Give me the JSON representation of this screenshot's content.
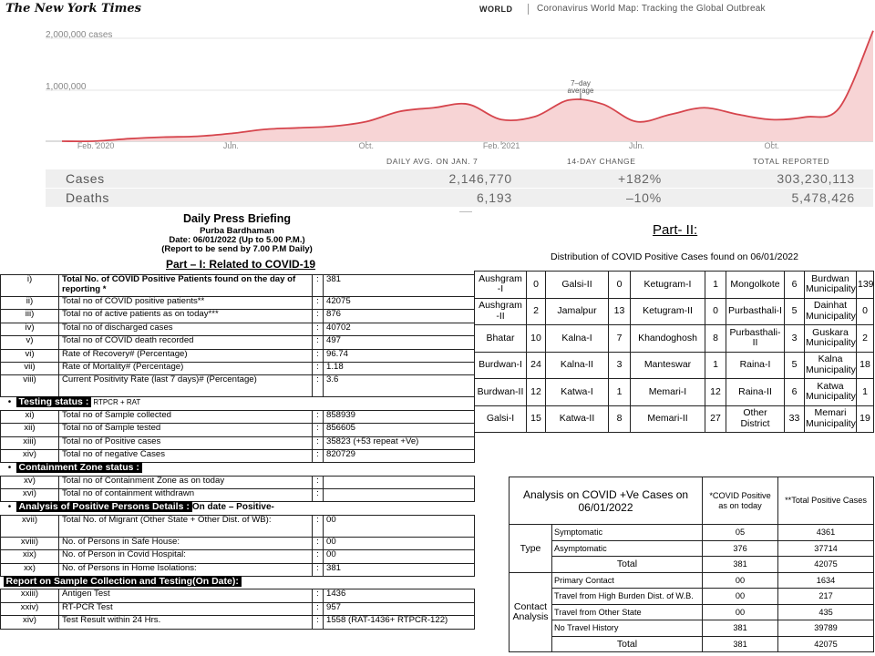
{
  "nyt": {
    "logo": "The New York Times",
    "section": "WORLD",
    "headline": "Coronavirus World Map: Tracking the Global Outbreak"
  },
  "chart_data": {
    "type": "area",
    "title": "",
    "y_ticks": [
      "2,000,000 cases",
      "1,000,000"
    ],
    "x_ticks": [
      "Feb. 2020",
      "Jun.",
      "Oct.",
      "Feb. 2021",
      "Jun.",
      "Oct."
    ],
    "annotation": "7–day average",
    "ylim": [
      0,
      2200000
    ],
    "color": "#d6454d",
    "fill": "#f7d4d5",
    "series": [
      {
        "x": [
          "2020-01",
          "2020-02",
          "2020-03",
          "2020-04",
          "2020-05",
          "2020-06",
          "2020-07",
          "2020-08",
          "2020-09",
          "2020-10",
          "2020-11",
          "2020-12",
          "2021-01",
          "2021-02",
          "2021-03",
          "2021-04",
          "2021-05",
          "2021-06",
          "2021-07",
          "2021-08",
          "2021-09",
          "2021-10",
          "2021-11",
          "2021-12",
          "2022-01"
        ],
        "values": [
          0,
          2000,
          50000,
          80000,
          95000,
          150000,
          230000,
          260000,
          290000,
          380000,
          580000,
          650000,
          720000,
          420000,
          480000,
          800000,
          720000,
          380000,
          520000,
          650000,
          520000,
          420000,
          470000,
          650000,
          2146770
        ]
      }
    ]
  },
  "nyt_stats": {
    "headers": [
      "DAILY AVG. ON JAN. 7",
      "14-DAY CHANGE",
      "TOTAL REPORTED"
    ],
    "rows": [
      {
        "label": "Cases",
        "avg": "2,146,770",
        "change": "+182%",
        "total": "303,230,113"
      },
      {
        "label": "Deaths",
        "avg": "6,193",
        "change": "–10%",
        "total": "5,478,426"
      }
    ]
  },
  "briefing": {
    "title": "Daily Press Briefing",
    "district": "Purba Bardhaman",
    "date": "Date: 06/01/2022 (Up to 5.00 P.M.)",
    "note": "(Report to be send by 7.00 P.M Daily)",
    "part1": "Part – I: Related to COVID-19"
  },
  "part1_rows": [
    {
      "n": "i)",
      "label": "Total No. of COVID Positive Patients found on the day of reporting *",
      "value": "381"
    },
    {
      "n": "ii)",
      "label": "Total no of COVID positive patients**",
      "value": "42075"
    },
    {
      "n": "iii)",
      "label": "Total no of active patients as on today***",
      "value": "876"
    },
    {
      "n": "iv)",
      "label": "Total no of discharged cases",
      "value": "40702"
    },
    {
      "n": "v)",
      "label": "Total no of COVID death recorded",
      "value": "497"
    },
    {
      "n": "vi)",
      "label": "Rate of Recovery# (Percentage)",
      "value": "96.74"
    },
    {
      "n": "vii)",
      "label": "Rate of Mortality# (Percentage)",
      "value": "1.18"
    },
    {
      "n": "viii)",
      "label": "Current Positivity Rate (last 7 days)# (Percentage)",
      "value": "3.6"
    }
  ],
  "testing": {
    "bullet": "•",
    "title": "Testing status :",
    "suffix": "RTPCR + RAT",
    "rows": [
      {
        "n": "xi)",
        "label": "Total no of Sample collected",
        "value": "858939"
      },
      {
        "n": "xii)",
        "label": "Total no of Sample tested",
        "value": "856605"
      },
      {
        "n": "xiii)",
        "label": "Total no of Positive cases",
        "value": "35823  (+53 repeat +Ve)"
      },
      {
        "n": "xiv)",
        "label": "Total no of negative Cases",
        "value": "820729"
      }
    ]
  },
  "containment": {
    "bullet": "•",
    "title": "Containment Zone status :",
    "rows": [
      {
        "n": "xv)",
        "label": "Total no of Containment Zone as on today",
        "value": ""
      },
      {
        "n": "xvi)",
        "label": "Total no of containment withdrawn",
        "value": ""
      }
    ]
  },
  "analysis_pos": {
    "bullet": "•",
    "title": "Analysis of Positive Persons Details :",
    "suffix": "On date – Positive-",
    "rows": [
      {
        "n": "xvii)",
        "label": "Total No. of Migrant (Other State + Other Dist. of WB):",
        "value": "00"
      },
      {
        "n": "xviii)",
        "label": "No. of Persons in Safe House:",
        "value": "00"
      },
      {
        "n": "xix)",
        "label": "No. of Person in Covid Hospital:",
        "value": "00"
      },
      {
        "n": "xx)",
        "label": "No. of Persons in Home Isolations:",
        "value": "381"
      }
    ]
  },
  "sample": {
    "title": "Report on Sample Collection and Testing(On Date):",
    "rows": [
      {
        "n": "xxiii)",
        "label": "Antigen Test",
        "value": "1436"
      },
      {
        "n": "xxiv)",
        "label": "RT-PCR Test",
        "value": "957"
      },
      {
        "n": "xiv)",
        "label": "Test Result within 24 Hrs.",
        "value": "1558  (RAT-1436+ RTPCR-122)"
      }
    ]
  },
  "colon": ":",
  "part2": {
    "title": "Part- II:",
    "subtitle": "Distribution of COVID Positive Cases found on 06/01/2022",
    "rows": [
      [
        [
          "Aushgram -I",
          "0"
        ],
        [
          "Galsi-II",
          "0"
        ],
        [
          "Ketugram-I",
          "1"
        ],
        [
          "Mongolkote",
          "6"
        ],
        [
          "Burdwan Municipality",
          "139"
        ]
      ],
      [
        [
          "Aushgram -II",
          "2"
        ],
        [
          "Jamalpur",
          "13"
        ],
        [
          "Ketugram-II",
          "0"
        ],
        [
          "Purbasthali-I",
          "5"
        ],
        [
          "Dainhat Municipality",
          "0"
        ]
      ],
      [
        [
          "Bhatar",
          "10"
        ],
        [
          "Kalna-I",
          "7"
        ],
        [
          "Khandoghosh",
          "8"
        ],
        [
          "Purbasthali-II",
          "3"
        ],
        [
          "Guskara Municipality",
          "2"
        ]
      ],
      [
        [
          "Burdwan-I",
          "24"
        ],
        [
          "Kalna-II",
          "3"
        ],
        [
          "Manteswar",
          "1"
        ],
        [
          "Raina-I",
          "5"
        ],
        [
          "Kalna Municipality",
          "18"
        ]
      ],
      [
        [
          "Burdwan-II",
          "12"
        ],
        [
          "Katwa-I",
          "1"
        ],
        [
          "Memari-I",
          "12"
        ],
        [
          "Raina-II",
          "6"
        ],
        [
          "Katwa Municipality",
          "1"
        ]
      ],
      [
        [
          "Galsi-I",
          "15"
        ],
        [
          "Katwa-II",
          "8"
        ],
        [
          "Memari-II",
          "27"
        ],
        [
          "Other District",
          "33"
        ],
        [
          "Memari Municipality",
          "19"
        ]
      ]
    ]
  },
  "analysis_table": {
    "title": "Analysis on COVID +Ve Cases on 06/01/2022",
    "col1": "*COVID Positive as on today",
    "col2": "**Total Positive Cases",
    "type_label": "Type",
    "type_rows": [
      {
        "label": "Symptomatic",
        "today": "05",
        "total": "4361"
      },
      {
        "label": "Asymptomatic",
        "today": "376",
        "total": "37714"
      }
    ],
    "type_total": {
      "label": "Total",
      "today": "381",
      "total": "42075"
    },
    "contact_label": "Contact Analysis",
    "contact_rows": [
      {
        "label": "Primary Contact",
        "today": "00",
        "total": "1634"
      },
      {
        "label": "Travel from High Burden Dist. of W.B.",
        "today": "00",
        "total": "217"
      },
      {
        "label": "Travel from Other State",
        "today": "00",
        "total": "435"
      },
      {
        "label": "No Travel History",
        "today": "381",
        "total": "39789"
      }
    ],
    "contact_total": {
      "label": "Total",
      "today": "381",
      "total": "42075"
    }
  }
}
